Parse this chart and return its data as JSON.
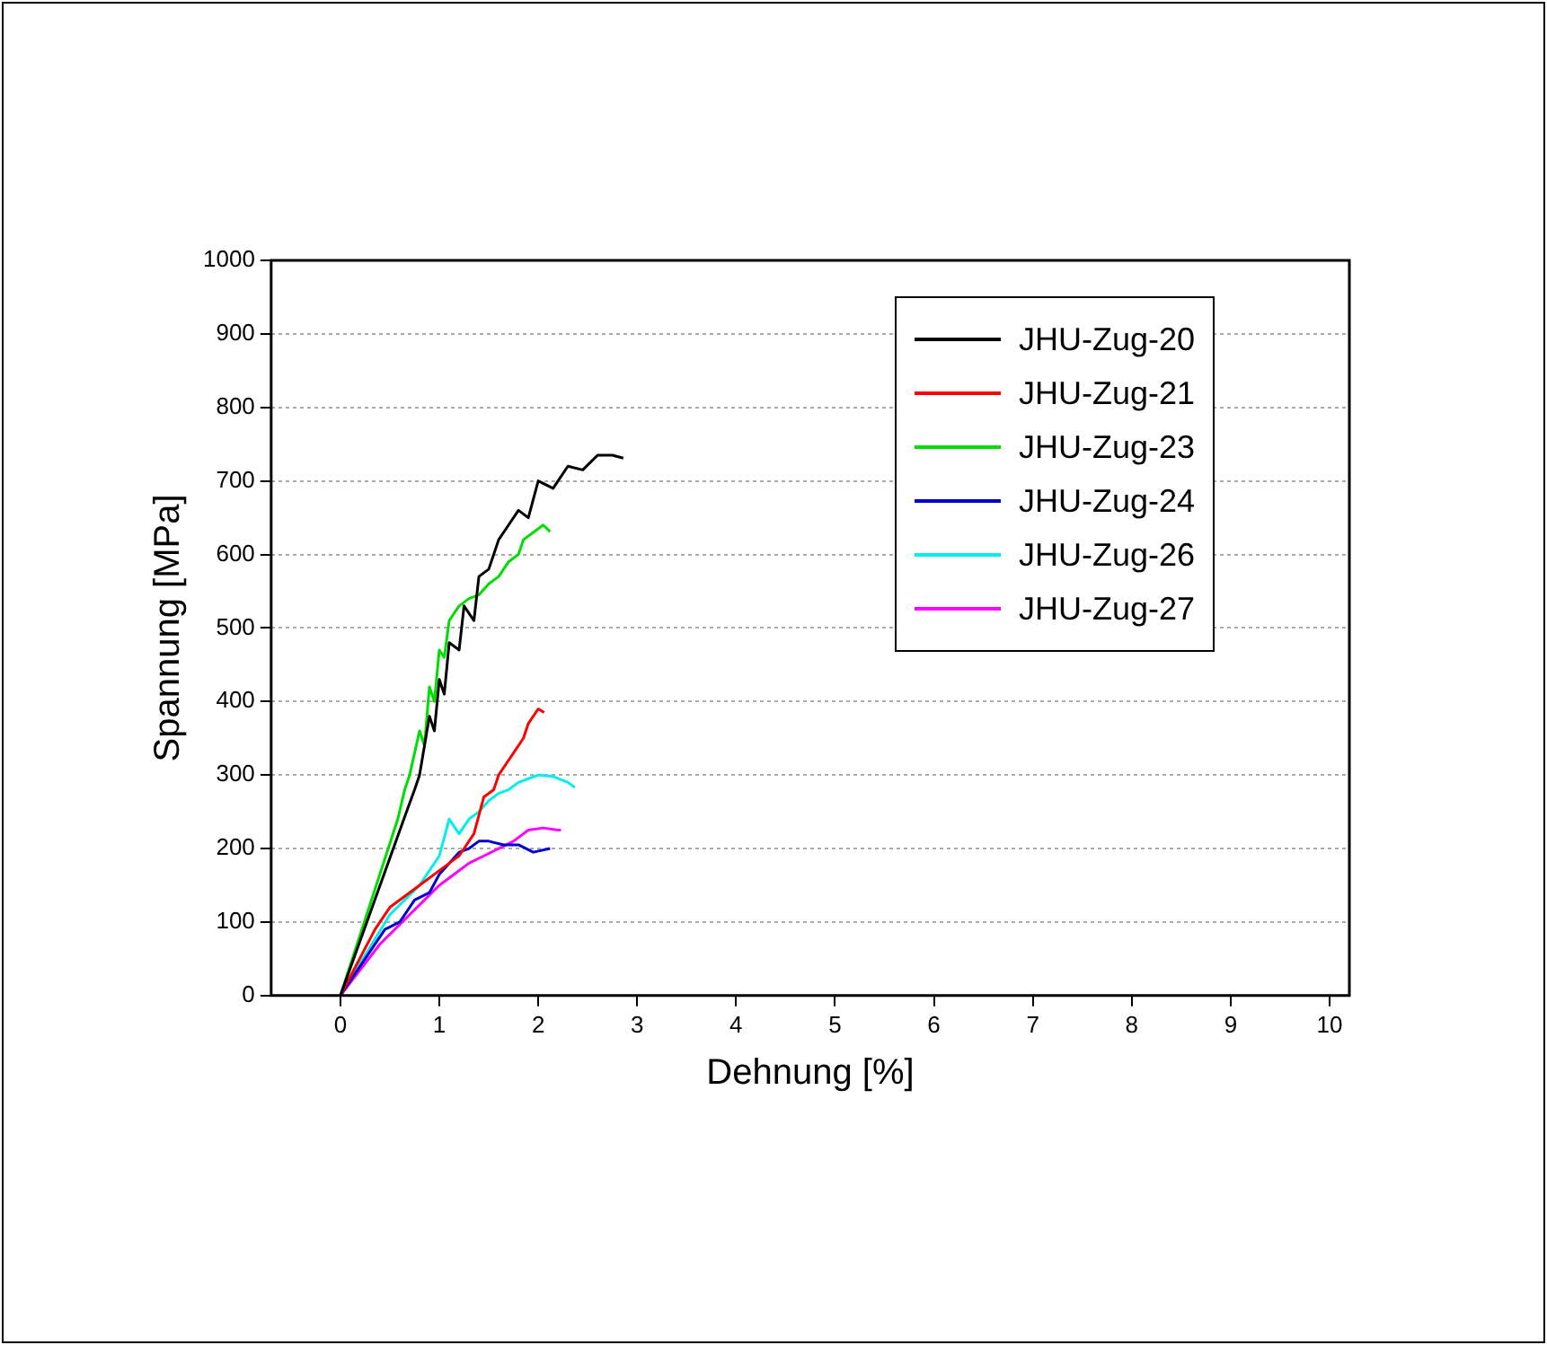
{
  "chart_data": {
    "type": "line",
    "xlabel": "Dehnung [%]",
    "ylabel": "Spannung [MPa]",
    "xlim": [
      -0.7,
      10.2
    ],
    "xticks": [
      0,
      1,
      2,
      3,
      4,
      5,
      6,
      7,
      8,
      9,
      10
    ],
    "ylim": [
      0,
      1000
    ],
    "yticks": [
      0,
      100,
      200,
      300,
      400,
      500,
      600,
      700,
      800,
      900,
      1000
    ],
    "grid": "y",
    "legend": "top right",
    "series": [
      {
        "name": "JHU-Zug-20",
        "color": "#000000",
        "x": [
          0,
          0.69,
          0.75,
          0.8,
          0.85,
          0.9,
          0.95,
          1.0,
          1.05,
          1.1,
          1.2,
          1.25,
          1.35,
          1.4,
          1.5,
          1.6,
          1.7,
          1.8,
          1.9,
          2.0,
          2.15,
          2.3,
          2.45,
          2.6,
          2.75,
          2.86
        ],
        "values": [
          0,
          258,
          280,
          300,
          340,
          380,
          360,
          430,
          410,
          480,
          470,
          530,
          510,
          570,
          580,
          620,
          640,
          660,
          650,
          700,
          690,
          720,
          715,
          735,
          735,
          731
        ]
      },
      {
        "name": "JHU-Zug-21",
        "color": "#ff0000",
        "x": [
          0,
          0.35,
          0.5,
          0.65,
          0.8,
          1.0,
          1.2,
          1.35,
          1.45,
          1.55,
          1.6,
          1.7,
          1.75,
          1.85,
          1.9,
          2.0,
          2.06
        ],
        "values": [
          0,
          90,
          120,
          135,
          150,
          170,
          190,
          220,
          270,
          280,
          300,
          320,
          330,
          350,
          370,
          390,
          385
        ]
      },
      {
        "name": "JHU-Zug-23",
        "color": "#00dd00",
        "x": [
          0,
          0.58,
          0.65,
          0.7,
          0.75,
          0.8,
          0.85,
          0.9,
          0.95,
          1.0,
          1.05,
          1.1,
          1.2,
          1.3,
          1.4,
          1.5,
          1.6,
          1.7,
          1.8,
          1.85,
          1.95,
          2.05,
          2.12
        ],
        "values": [
          0,
          240,
          280,
          300,
          330,
          360,
          340,
          420,
          400,
          470,
          460,
          510,
          530,
          540,
          545,
          560,
          570,
          590,
          600,
          620,
          630,
          640,
          631
        ]
      },
      {
        "name": "JHU-Zug-24",
        "color": "#0000cc",
        "x": [
          0,
          0.3,
          0.45,
          0.6,
          0.75,
          0.9,
          1.0,
          1.1,
          1.2,
          1.3,
          1.4,
          1.5,
          1.65,
          1.8,
          1.95,
          2.12
        ],
        "values": [
          0,
          60,
          90,
          100,
          130,
          140,
          165,
          180,
          195,
          200,
          210,
          210,
          205,
          205,
          195,
          200
        ]
      },
      {
        "name": "JHU-Zug-26",
        "color": "#00eeee",
        "x": [
          0,
          0.5,
          0.65,
          0.8,
          0.9,
          1.0,
          1.1,
          1.2,
          1.3,
          1.4,
          1.5,
          1.6,
          1.7,
          1.8,
          1.9,
          2.0,
          2.15,
          2.3,
          2.37
        ],
        "values": [
          0,
          110,
          130,
          150,
          170,
          190,
          240,
          220,
          240,
          250,
          265,
          275,
          280,
          290,
          295,
          300,
          298,
          290,
          283
        ]
      },
      {
        "name": "JHU-Zug-27",
        "color": "#ff00ff",
        "x": [
          0,
          0.4,
          0.55,
          0.7,
          0.85,
          1.0,
          1.15,
          1.3,
          1.45,
          1.6,
          1.75,
          1.9,
          2.05,
          2.2,
          2.23
        ],
        "values": [
          0,
          70,
          90,
          110,
          130,
          150,
          165,
          180,
          190,
          200,
          210,
          225,
          228,
          225,
          225
        ]
      }
    ]
  }
}
